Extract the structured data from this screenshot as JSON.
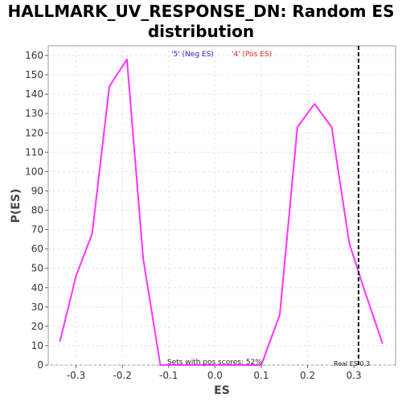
{
  "page": {
    "title_line1": "HALLMARK_UV_RESPONSE_DN: Random ES",
    "title_line2": "distribution"
  },
  "chart_data": {
    "type": "line",
    "title": "HALLMARK_UV_RESPONSE_DN: Random ES distribution",
    "xlabel": "ES",
    "ylabel": "P(ES)",
    "xlim": [
      -0.36,
      0.39
    ],
    "ylim": [
      0,
      165
    ],
    "x_ticks": [
      -0.3,
      -0.2,
      -0.1,
      0.0,
      0.1,
      0.2,
      0.3
    ],
    "x_tick_labels": [
      "-0.3",
      "-0.2",
      "-0.1",
      "0.0",
      "0.1",
      "0.2",
      "0.3"
    ],
    "y_ticks": [
      0,
      10,
      20,
      30,
      40,
      50,
      60,
      70,
      80,
      90,
      100,
      110,
      120,
      130,
      140,
      150,
      160
    ],
    "y_tick_labels": [
      "0",
      "10",
      "20",
      "30",
      "40",
      "50",
      "60",
      "70",
      "80",
      "90",
      "100",
      "110",
      "120",
      "130",
      "140",
      "150",
      "160"
    ],
    "grid": true,
    "series": [
      {
        "color": "#ff33ff",
        "x": [
          -0.335,
          -0.3,
          -0.265,
          -0.228,
          -0.19,
          -0.155,
          -0.118,
          -0.08,
          -0.045,
          -0.01,
          0.03,
          0.065,
          0.1,
          0.14,
          0.178,
          0.215,
          0.252,
          0.29,
          0.325,
          0.362
        ],
        "y": [
          12,
          46,
          68,
          144,
          158,
          55,
          0,
          0,
          0,
          0,
          0,
          0,
          0,
          26,
          123,
          135,
          123,
          63,
          37,
          11
        ]
      }
    ],
    "legend": {
      "placement": "top-center",
      "items": [
        {
          "label": "'5' (Neg ES)",
          "color": "#2222cc"
        },
        {
          "label": "'4' (Pos ES)",
          "color": "#dd2222"
        }
      ]
    },
    "real_es": {
      "value": 0.31,
      "label": "Real ES 0.3",
      "color": "#000000"
    },
    "annotation": "Sets with pos scores: 52%"
  }
}
